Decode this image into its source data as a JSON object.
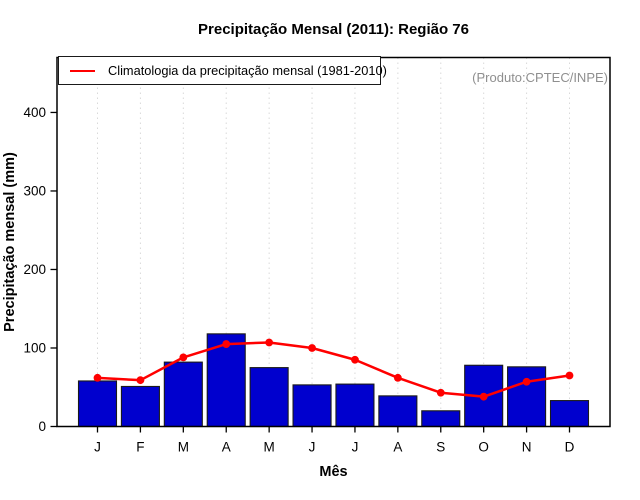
{
  "figure": {
    "title": "Precipitação Mensal (2011): Região 76",
    "annotation": "(Produto:CPTEC/INPE)",
    "legend_label": "Climatologia da precipitação mensal (1981-2010)"
  },
  "chart_data": {
    "type": "bar",
    "title": "Precipitação Mensal (2011): Região 76",
    "xlabel": "Mês",
    "ylabel": "Precipitação mensal (mm)",
    "categories": [
      "J",
      "F",
      "M",
      "A",
      "M",
      "J",
      "J",
      "A",
      "S",
      "O",
      "N",
      "D"
    ],
    "series": [
      {
        "type": "bar",
        "color": "#0000CE",
        "values": [
          58,
          51,
          82,
          118,
          75,
          53,
          54,
          39,
          20,
          78,
          76,
          33
        ]
      },
      {
        "type": "line",
        "name": "Climatologia da precipitação mensal (1981-2010)",
        "color": "#FF0000",
        "values": [
          62,
          59,
          88,
          105,
          107,
          100,
          85,
          62,
          43,
          38,
          57,
          65
        ]
      }
    ],
    "ylim": [
      0,
      470
    ],
    "yticks": [
      0,
      100,
      200,
      300,
      400
    ],
    "grid": "vertical-dotted",
    "legend_position": "top-left"
  },
  "colors": {
    "bar_fill": "#0000CE",
    "bar_border": "#1A1A1A",
    "line": "#FF0000",
    "grid": "#D9D9D9",
    "axis": "#000000",
    "muted_text": "#8F8F8F"
  }
}
